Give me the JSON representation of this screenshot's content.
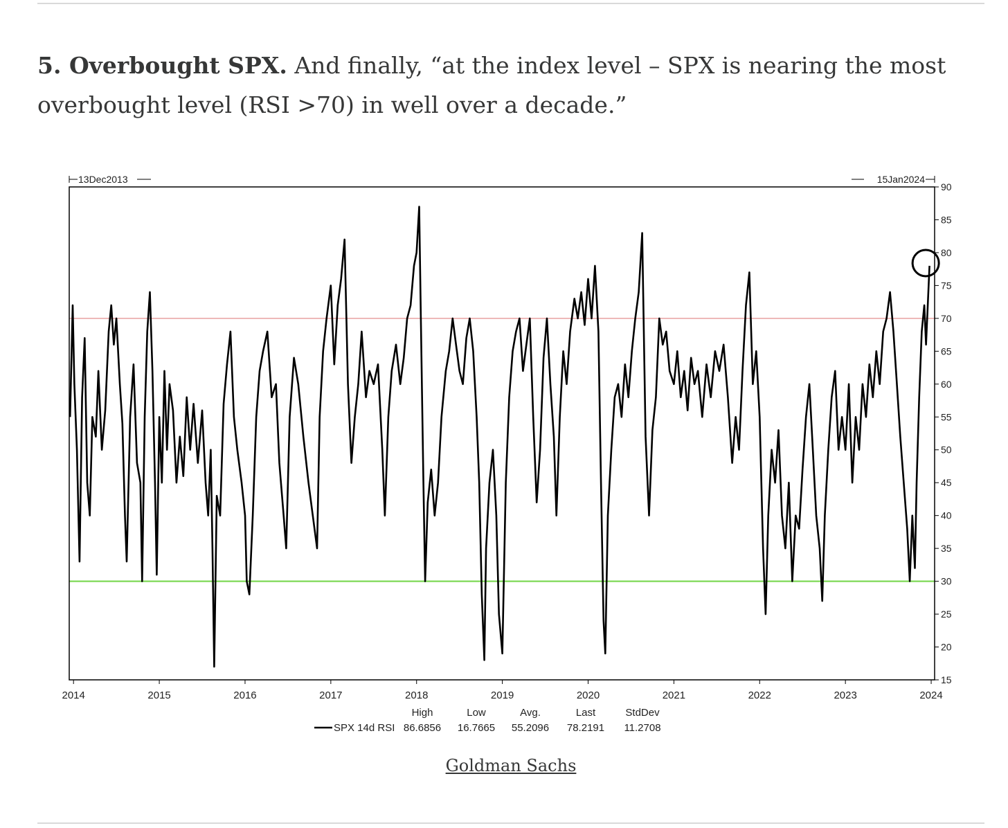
{
  "article": {
    "lead_bold": "5. Overbought SPX.",
    "body": " And finally, “at the index level – SPX is nearing the most overbought level (RSI >70) in well over a decade.”",
    "caption": "Goldman Sachs"
  },
  "chart_data": {
    "type": "line",
    "title": "",
    "xlabel": "",
    "ylabel": "",
    "start_label": "13Dec2013",
    "end_label": "15Jan2024",
    "x_ticks": [
      "2014",
      "2015",
      "2016",
      "2017",
      "2018",
      "2019",
      "2020",
      "2021",
      "2022",
      "2023",
      "2024"
    ],
    "y_ticks": [
      "90",
      "85",
      "80",
      "75",
      "70",
      "65",
      "60",
      "55",
      "50",
      "45",
      "40",
      "35",
      "30",
      "25",
      "20",
      "15"
    ],
    "ylim": [
      15,
      90
    ],
    "xlim": [
      2013.95,
      2024.04
    ],
    "reference_lines": [
      {
        "value": 70,
        "color": "#e8a0a0"
      },
      {
        "value": 30,
        "color": "#7ed957"
      }
    ],
    "highlight": {
      "x": 2023.92,
      "y": 78.2,
      "shape": "circle"
    },
    "series": [
      {
        "name": "SPX 14d RSI",
        "color": "#000000",
        "points": [
          [
            2013.96,
            55
          ],
          [
            2013.99,
            72
          ],
          [
            2014.01,
            60
          ],
          [
            2014.04,
            50
          ],
          [
            2014.07,
            33
          ],
          [
            2014.1,
            58
          ],
          [
            2014.13,
            67
          ],
          [
            2014.16,
            45
          ],
          [
            2014.19,
            40
          ],
          [
            2014.22,
            55
          ],
          [
            2014.26,
            52
          ],
          [
            2014.29,
            62
          ],
          [
            2014.33,
            50
          ],
          [
            2014.37,
            56
          ],
          [
            2014.41,
            68
          ],
          [
            2014.44,
            72
          ],
          [
            2014.47,
            66
          ],
          [
            2014.5,
            70
          ],
          [
            2014.54,
            60
          ],
          [
            2014.57,
            54
          ],
          [
            2014.6,
            40
          ],
          [
            2014.62,
            33
          ],
          [
            2014.66,
            55
          ],
          [
            2014.7,
            63
          ],
          [
            2014.74,
            48
          ],
          [
            2014.78,
            45
          ],
          [
            2014.8,
            30
          ],
          [
            2014.83,
            55
          ],
          [
            2014.86,
            68
          ],
          [
            2014.89,
            74
          ],
          [
            2014.92,
            62
          ],
          [
            2014.95,
            45
          ],
          [
            2014.97,
            31
          ],
          [
            2015.0,
            55
          ],
          [
            2015.03,
            45
          ],
          [
            2015.06,
            62
          ],
          [
            2015.09,
            50
          ],
          [
            2015.12,
            60
          ],
          [
            2015.16,
            56
          ],
          [
            2015.2,
            45
          ],
          [
            2015.24,
            52
          ],
          [
            2015.28,
            46
          ],
          [
            2015.32,
            58
          ],
          [
            2015.36,
            50
          ],
          [
            2015.4,
            57
          ],
          [
            2015.45,
            48
          ],
          [
            2015.5,
            56
          ],
          [
            2015.54,
            45
          ],
          [
            2015.57,
            40
          ],
          [
            2015.6,
            50
          ],
          [
            2015.62,
            35
          ],
          [
            2015.64,
            17
          ],
          [
            2015.67,
            43
          ],
          [
            2015.71,
            40
          ],
          [
            2015.75,
            57
          ],
          [
            2015.79,
            63
          ],
          [
            2015.83,
            68
          ],
          [
            2015.87,
            55
          ],
          [
            2015.91,
            50
          ],
          [
            2015.96,
            45
          ],
          [
            2016.0,
            40
          ],
          [
            2016.02,
            30
          ],
          [
            2016.05,
            28
          ],
          [
            2016.09,
            40
          ],
          [
            2016.13,
            55
          ],
          [
            2016.17,
            62
          ],
          [
            2016.21,
            65
          ],
          [
            2016.26,
            68
          ],
          [
            2016.31,
            58
          ],
          [
            2016.36,
            60
          ],
          [
            2016.4,
            48
          ],
          [
            2016.45,
            40
          ],
          [
            2016.48,
            35
          ],
          [
            2016.52,
            55
          ],
          [
            2016.57,
            64
          ],
          [
            2016.62,
            60
          ],
          [
            2016.68,
            52
          ],
          [
            2016.74,
            45
          ],
          [
            2016.79,
            40
          ],
          [
            2016.84,
            35
          ],
          [
            2016.87,
            55
          ],
          [
            2016.91,
            65
          ],
          [
            2016.95,
            70
          ],
          [
            2017.0,
            75
          ],
          [
            2017.04,
            63
          ],
          [
            2017.08,
            72
          ],
          [
            2017.12,
            76
          ],
          [
            2017.16,
            82
          ],
          [
            2017.2,
            60
          ],
          [
            2017.24,
            48
          ],
          [
            2017.28,
            55
          ],
          [
            2017.32,
            60
          ],
          [
            2017.36,
            68
          ],
          [
            2017.41,
            58
          ],
          [
            2017.45,
            62
          ],
          [
            2017.5,
            60
          ],
          [
            2017.55,
            63
          ],
          [
            2017.6,
            50
          ],
          [
            2017.63,
            40
          ],
          [
            2017.67,
            55
          ],
          [
            2017.71,
            62
          ],
          [
            2017.76,
            66
          ],
          [
            2017.81,
            60
          ],
          [
            2017.85,
            64
          ],
          [
            2017.89,
            70
          ],
          [
            2017.93,
            72
          ],
          [
            2017.97,
            78
          ],
          [
            2018.0,
            80
          ],
          [
            2018.03,
            87
          ],
          [
            2018.05,
            70
          ],
          [
            2018.08,
            45
          ],
          [
            2018.1,
            30
          ],
          [
            2018.13,
            42
          ],
          [
            2018.17,
            47
          ],
          [
            2018.21,
            40
          ],
          [
            2018.25,
            45
          ],
          [
            2018.29,
            55
          ],
          [
            2018.34,
            62
          ],
          [
            2018.38,
            65
          ],
          [
            2018.42,
            70
          ],
          [
            2018.46,
            66
          ],
          [
            2018.5,
            62
          ],
          [
            2018.54,
            60
          ],
          [
            2018.58,
            67
          ],
          [
            2018.62,
            70
          ],
          [
            2018.66,
            65
          ],
          [
            2018.7,
            55
          ],
          [
            2018.73,
            45
          ],
          [
            2018.76,
            28
          ],
          [
            2018.79,
            18
          ],
          [
            2018.81,
            35
          ],
          [
            2018.85,
            45
          ],
          [
            2018.89,
            50
          ],
          [
            2018.93,
            40
          ],
          [
            2018.96,
            25
          ],
          [
            2019.0,
            19
          ],
          [
            2019.04,
            45
          ],
          [
            2019.08,
            58
          ],
          [
            2019.12,
            65
          ],
          [
            2019.16,
            68
          ],
          [
            2019.2,
            70
          ],
          [
            2019.24,
            62
          ],
          [
            2019.28,
            66
          ],
          [
            2019.32,
            70
          ],
          [
            2019.36,
            55
          ],
          [
            2019.4,
            42
          ],
          [
            2019.44,
            50
          ],
          [
            2019.48,
            64
          ],
          [
            2019.52,
            70
          ],
          [
            2019.56,
            60
          ],
          [
            2019.6,
            52
          ],
          [
            2019.63,
            40
          ],
          [
            2019.67,
            55
          ],
          [
            2019.71,
            65
          ],
          [
            2019.75,
            60
          ],
          [
            2019.79,
            68
          ],
          [
            2019.84,
            73
          ],
          [
            2019.88,
            70
          ],
          [
            2019.92,
            74
          ],
          [
            2019.96,
            69
          ],
          [
            2020.0,
            76
          ],
          [
            2020.04,
            70
          ],
          [
            2020.08,
            78
          ],
          [
            2020.12,
            68
          ],
          [
            2020.15,
            45
          ],
          [
            2020.18,
            24
          ],
          [
            2020.2,
            19
          ],
          [
            2020.23,
            40
          ],
          [
            2020.27,
            50
          ],
          [
            2020.31,
            58
          ],
          [
            2020.35,
            60
          ],
          [
            2020.39,
            55
          ],
          [
            2020.43,
            63
          ],
          [
            2020.47,
            58
          ],
          [
            2020.51,
            65
          ],
          [
            2020.55,
            70
          ],
          [
            2020.59,
            74
          ],
          [
            2020.63,
            83
          ],
          [
            2020.67,
            52
          ],
          [
            2020.71,
            40
          ],
          [
            2020.75,
            53
          ],
          [
            2020.79,
            58
          ],
          [
            2020.83,
            70
          ],
          [
            2020.87,
            66
          ],
          [
            2020.91,
            68
          ],
          [
            2020.95,
            62
          ],
          [
            2021.0,
            60
          ],
          [
            2021.04,
            65
          ],
          [
            2021.08,
            58
          ],
          [
            2021.12,
            62
          ],
          [
            2021.16,
            56
          ],
          [
            2021.2,
            64
          ],
          [
            2021.24,
            60
          ],
          [
            2021.28,
            62
          ],
          [
            2021.33,
            55
          ],
          [
            2021.38,
            63
          ],
          [
            2021.43,
            58
          ],
          [
            2021.48,
            65
          ],
          [
            2021.53,
            62
          ],
          [
            2021.58,
            66
          ],
          [
            2021.63,
            58
          ],
          [
            2021.68,
            48
          ],
          [
            2021.72,
            55
          ],
          [
            2021.76,
            50
          ],
          [
            2021.8,
            62
          ],
          [
            2021.84,
            72
          ],
          [
            2021.88,
            77
          ],
          [
            2021.92,
            60
          ],
          [
            2021.96,
            65
          ],
          [
            2022.0,
            55
          ],
          [
            2022.04,
            35
          ],
          [
            2022.07,
            25
          ],
          [
            2022.1,
            40
          ],
          [
            2022.14,
            50
          ],
          [
            2022.18,
            45
          ],
          [
            2022.22,
            53
          ],
          [
            2022.26,
            40
          ],
          [
            2022.3,
            35
          ],
          [
            2022.34,
            45
          ],
          [
            2022.38,
            30
          ],
          [
            2022.42,
            40
          ],
          [
            2022.46,
            38
          ],
          [
            2022.5,
            47
          ],
          [
            2022.54,
            55
          ],
          [
            2022.58,
            60
          ],
          [
            2022.62,
            50
          ],
          [
            2022.66,
            40
          ],
          [
            2022.7,
            35
          ],
          [
            2022.73,
            27
          ],
          [
            2022.76,
            40
          ],
          [
            2022.8,
            50
          ],
          [
            2022.84,
            58
          ],
          [
            2022.88,
            62
          ],
          [
            2022.92,
            50
          ],
          [
            2022.96,
            55
          ],
          [
            2023.0,
            50
          ],
          [
            2023.04,
            60
          ],
          [
            2023.08,
            45
          ],
          [
            2023.12,
            55
          ],
          [
            2023.16,
            50
          ],
          [
            2023.2,
            60
          ],
          [
            2023.24,
            55
          ],
          [
            2023.28,
            63
          ],
          [
            2023.32,
            58
          ],
          [
            2023.36,
            65
          ],
          [
            2023.4,
            60
          ],
          [
            2023.44,
            68
          ],
          [
            2023.48,
            70
          ],
          [
            2023.52,
            74
          ],
          [
            2023.56,
            68
          ],
          [
            2023.6,
            60
          ],
          [
            2023.64,
            52
          ],
          [
            2023.68,
            45
          ],
          [
            2023.72,
            38
          ],
          [
            2023.75,
            30
          ],
          [
            2023.78,
            40
          ],
          [
            2023.81,
            32
          ],
          [
            2023.83,
            45
          ],
          [
            2023.86,
            58
          ],
          [
            2023.89,
            68
          ],
          [
            2023.92,
            72
          ],
          [
            2023.94,
            66
          ],
          [
            2023.96,
            72
          ],
          [
            2023.98,
            78
          ]
        ]
      }
    ],
    "legend_stats": {
      "headers": [
        "High",
        "Low",
        "Avg.",
        "Last",
        "StdDev"
      ],
      "series_name": "SPX 14d RSI",
      "values": [
        "86.6856",
        "16.7665",
        "55.2096",
        "78.2191",
        "11.2708"
      ]
    }
  }
}
